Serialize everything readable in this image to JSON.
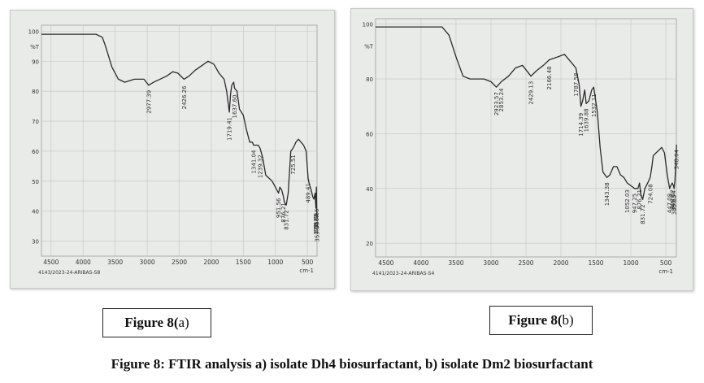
{
  "caption": "Figure 8: FTIR analysis a) isolate Dh4 biosurfactant, b) isolate Dm2 biosurfactant",
  "panels": [
    {
      "label_bold": "Figure 8(",
      "label_letter": "a)"
    },
    {
      "label_bold": "Figure 8(",
      "label_letter": "b)"
    }
  ],
  "colors": {
    "trace": "#2a2a2a",
    "grid": "#c2c6c2",
    "paper": "#e9ebe9",
    "peak_label": "#3a3a3a"
  },
  "chart_data": [
    {
      "type": "line",
      "title": "",
      "xlabel": "cm-1",
      "ylabel": "%T",
      "xlim": [
        4650,
        350
      ],
      "ylim": [
        25,
        102
      ],
      "x_ticks": [
        "4500",
        "4000",
        "3500",
        "3000",
        "2500",
        "2000",
        "1500",
        "1000",
        "500"
      ],
      "y_ticks": [
        "100",
        "%T",
        "90",
        "80",
        "70",
        "60",
        "50",
        "40",
        "30"
      ],
      "footer": "4143/2023-24-ARIBAS-S8",
      "series": [
        {
          "x": [
            4650,
            3800,
            3700,
            3650,
            3550,
            3450,
            3350,
            3200,
            3050,
            2977,
            2900,
            2800,
            2700,
            2600,
            2520,
            2426,
            2350,
            2250,
            2150,
            2050,
            1960,
            1880,
            1800,
            1760,
            1719,
            1700,
            1680,
            1650,
            1637,
            1600,
            1560,
            1500,
            1450,
            1400,
            1360,
            1341,
            1300,
            1270,
            1239,
            1200,
            1150,
            1100,
            1050,
            1000,
            951,
            930,
            900,
            876,
            860,
            831,
            800,
            760,
            725,
            700,
            680,
            640,
            600,
            560,
            520,
            489,
            471,
            440,
            420,
            400,
            380,
            368,
            360,
            356,
            353
          ],
          "y": [
            99,
            99,
            98,
            95,
            88,
            84,
            83,
            84,
            84,
            82,
            83,
            84,
            85,
            86.5,
            86,
            84,
            85,
            87,
            88.5,
            90,
            89,
            86,
            84,
            80,
            73,
            79,
            82,
            83,
            81,
            80,
            74,
            72,
            67,
            63,
            63,
            62,
            62,
            62,
            61,
            58,
            52,
            51,
            50,
            48,
            46,
            48,
            47,
            45,
            43,
            42,
            46,
            60,
            61,
            62,
            63,
            64,
            63,
            62,
            60,
            51,
            49,
            47,
            45,
            44,
            46,
            41,
            48,
            43,
            38
          ]
        }
      ],
      "peak_labels": [
        "2977.39",
        "2426.26",
        "1719.41",
        "1637.60",
        "1341.04",
        "1239.32",
        "951.56",
        "876.21",
        "831.72",
        "725.51",
        "489.41",
        "371.73",
        "368.85",
        "356.66",
        "353.07"
      ]
    },
    {
      "type": "line",
      "title": "",
      "xlabel": "cm-1",
      "ylabel": "%T",
      "xlim": [
        4650,
        350
      ],
      "ylim": [
        15,
        102
      ],
      "x_ticks": [
        "4500",
        "4000",
        "3500",
        "3000",
        "2500",
        "2000",
        "1500",
        "1000",
        "500"
      ],
      "y_ticks": [
        "100",
        "%T",
        "80",
        "60",
        "40",
        "20"
      ],
      "footer": "4141/2023-24-ARIBAS-S4",
      "series": [
        {
          "x": [
            4650,
            3700,
            3600,
            3500,
            3400,
            3300,
            3200,
            3100,
            3000,
            2923,
            2853,
            2750,
            2650,
            2550,
            2429,
            2350,
            2250,
            2166,
            2050,
            1950,
            1850,
            1787,
            1740,
            1714,
            1690,
            1660,
            1639,
            1600,
            1560,
            1532,
            1480,
            1440,
            1400,
            1343,
            1300,
            1250,
            1200,
            1150,
            1100,
            1052,
            1000,
            947,
            900,
            876,
            860,
            831,
            800,
            760,
            724,
            700,
            680,
            640,
            600,
            560,
            520,
            480,
            447,
            430,
            408,
            392,
            383,
            370,
            348
          ],
          "y": [
            99,
            99,
            96,
            88,
            81,
            80,
            80,
            80,
            79,
            77,
            79,
            81,
            84,
            85,
            81,
            83,
            85,
            87,
            88,
            89,
            86,
            84,
            78,
            70,
            72,
            76,
            71,
            72,
            76,
            77,
            68,
            55,
            46,
            44,
            45,
            48,
            48,
            45,
            44,
            42,
            41,
            40,
            40,
            42,
            38,
            36,
            40,
            42,
            44,
            48,
            52,
            53,
            54,
            55,
            53,
            45,
            40,
            41,
            42,
            41,
            40,
            43,
            56
          ]
        }
      ],
      "peak_labels": [
        "2923.57",
        "2853.24",
        "2429.13",
        "2166.48",
        "1787.58",
        "1714.39",
        "1639.88",
        "1532.11",
        "1343.38",
        "1052.03",
        "947.25",
        "876.21",
        "831.72",
        "724.08",
        "447.08",
        "408.32",
        "392.54",
        "383.63",
        "348.04"
      ]
    }
  ]
}
